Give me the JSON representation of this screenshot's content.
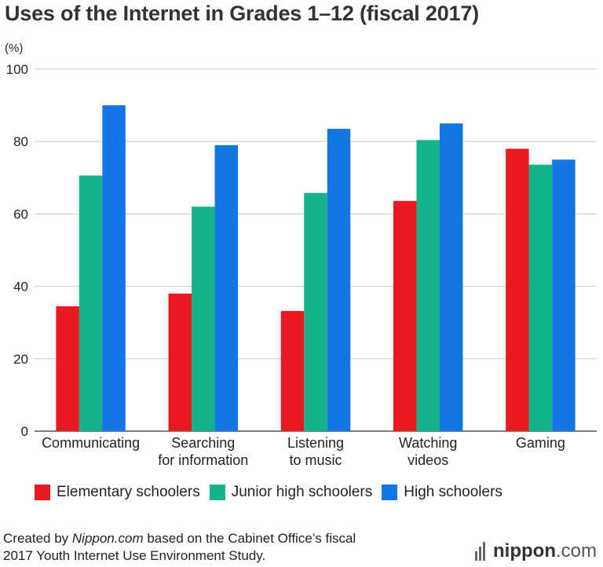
{
  "chart_data": {
    "type": "bar",
    "title": "Uses of the Internet in Grades 1–12 (fiscal 2017)",
    "unit_label": "(%)",
    "ylim": [
      0,
      100
    ],
    "yticks": [
      0,
      20,
      40,
      60,
      80,
      100
    ],
    "categories": [
      [
        "Communicating"
      ],
      [
        "Searching",
        "for information"
      ],
      [
        "Listening",
        "to music"
      ],
      [
        "Watching",
        "videos"
      ],
      [
        "Gaming"
      ]
    ],
    "series": [
      {
        "name": "Elementary schoolers",
        "color": "#e8191f",
        "values": [
          34.5,
          38,
          33.2,
          63.6,
          78
        ]
      },
      {
        "name": "Junior high schoolers",
        "color": "#12b38a",
        "values": [
          70.6,
          62,
          65.8,
          80.4,
          73.6
        ]
      },
      {
        "name": "High schoolers",
        "color": "#1276e3",
        "values": [
          90,
          79,
          83.5,
          85,
          75
        ]
      }
    ],
    "grid": true,
    "legend": "bottom"
  },
  "source": {
    "prefix": "Created by ",
    "site": "Nippon.com",
    "line1_rest": " based on the Cabinet Office’s fiscal",
    "line2": "2017 Youth Internet Use Environment Study."
  },
  "brand": {
    "name": "nippon",
    "suffix": ".com"
  }
}
